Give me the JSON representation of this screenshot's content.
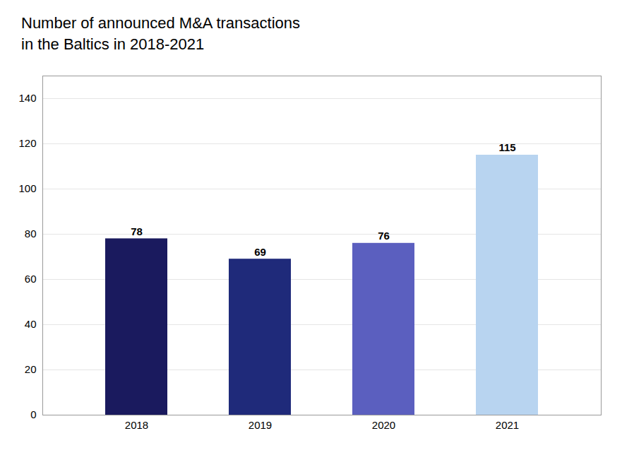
{
  "chart_data": {
    "type": "bar",
    "title": "Number of announced M&A transactions\nin the Baltics in 2018-2021",
    "categories": [
      "2018",
      "2019",
      "2020",
      "2021"
    ],
    "values": [
      78,
      69,
      76,
      115
    ],
    "colors": [
      "#1a1a5e",
      "#1f2a7a",
      "#5b5fbf",
      "#b8d4f0"
    ],
    "ylim": [
      0,
      150
    ],
    "yticks": [
      0,
      20,
      40,
      60,
      80,
      100,
      120,
      140
    ],
    "grid": true,
    "data_labels": true
  }
}
